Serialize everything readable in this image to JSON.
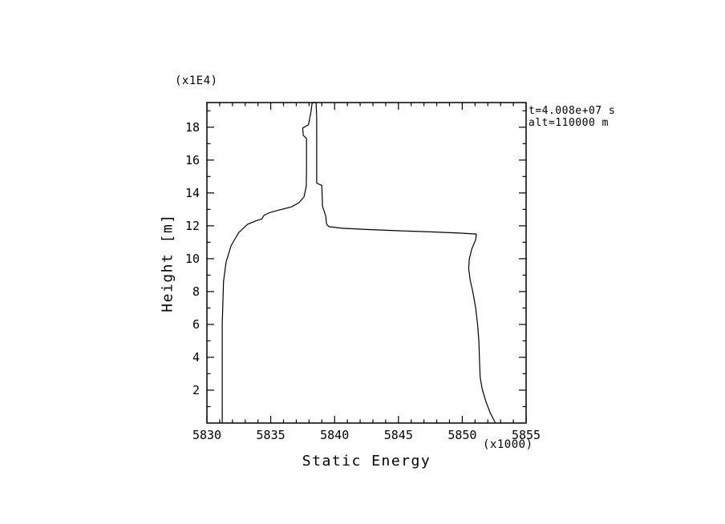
{
  "chart_data": {
    "type": "line",
    "title": "",
    "xlabel": "Static Energy",
    "ylabel": "Height [m]",
    "x_scale_note": "(x1000)",
    "y_scale_note": "(x1E4)",
    "annotation_lines": [
      "t=4.008e+07 s",
      "alt=110000 m"
    ],
    "xlim": [
      5830,
      5855
    ],
    "ylim": [
      0,
      19.5
    ],
    "x_major_ticks": [
      5830,
      5835,
      5840,
      5845,
      5850,
      5855
    ],
    "x_minor_step": 1,
    "y_major_ticks": [
      2,
      4,
      6,
      8,
      10,
      12,
      14,
      16,
      18
    ],
    "y_minor_step": 1,
    "grid": false,
    "legend": "none",
    "line_color": "#000000",
    "series": [
      {
        "name": "static-energy-profile",
        "points": [
          [
            5831.2,
            0
          ],
          [
            5831.2,
            6
          ],
          [
            5831.3,
            8.6
          ],
          [
            5831.5,
            9.8
          ],
          [
            5831.9,
            10.8
          ],
          [
            5832.5,
            11.6
          ],
          [
            5833.2,
            12.1
          ],
          [
            5833.9,
            12.32
          ],
          [
            5834.3,
            12.42
          ],
          [
            5834.45,
            12.62
          ],
          [
            5834.9,
            12.8
          ],
          [
            5835.7,
            12.97
          ],
          [
            5836.6,
            13.15
          ],
          [
            5837.2,
            13.4
          ],
          [
            5837.6,
            13.75
          ],
          [
            5837.78,
            14.4
          ],
          [
            5837.8,
            15.6
          ],
          [
            5837.8,
            17.3
          ],
          [
            5837.55,
            17.5
          ],
          [
            5837.5,
            17.95
          ],
          [
            5837.95,
            18.15
          ],
          [
            5838.12,
            18.8
          ],
          [
            5838.25,
            19.5
          ],
          [
            5838.55,
            19.5
          ],
          [
            5838.6,
            18.6
          ],
          [
            5838.6,
            14.6
          ],
          [
            5839.0,
            14.45
          ],
          [
            5839.05,
            13.2
          ],
          [
            5839.3,
            12.6
          ],
          [
            5839.38,
            12.1
          ],
          [
            5839.55,
            11.95
          ],
          [
            5840.6,
            11.85
          ],
          [
            5842.5,
            11.78
          ],
          [
            5845,
            11.7
          ],
          [
            5847.5,
            11.63
          ],
          [
            5849.8,
            11.56
          ],
          [
            5851.1,
            11.5
          ],
          [
            5851.05,
            11.15
          ],
          [
            5850.75,
            10.6
          ],
          [
            5850.55,
            10.0
          ],
          [
            5850.5,
            9.4
          ],
          [
            5850.62,
            8.7
          ],
          [
            5850.85,
            7.9
          ],
          [
            5851.05,
            7.0
          ],
          [
            5851.2,
            6.0
          ],
          [
            5851.3,
            5.0
          ],
          [
            5851.35,
            3.8
          ],
          [
            5851.4,
            2.8
          ],
          [
            5851.55,
            2.1
          ],
          [
            5851.85,
            1.3
          ],
          [
            5852.2,
            0.6
          ],
          [
            5852.6,
            0
          ]
        ]
      }
    ]
  }
}
